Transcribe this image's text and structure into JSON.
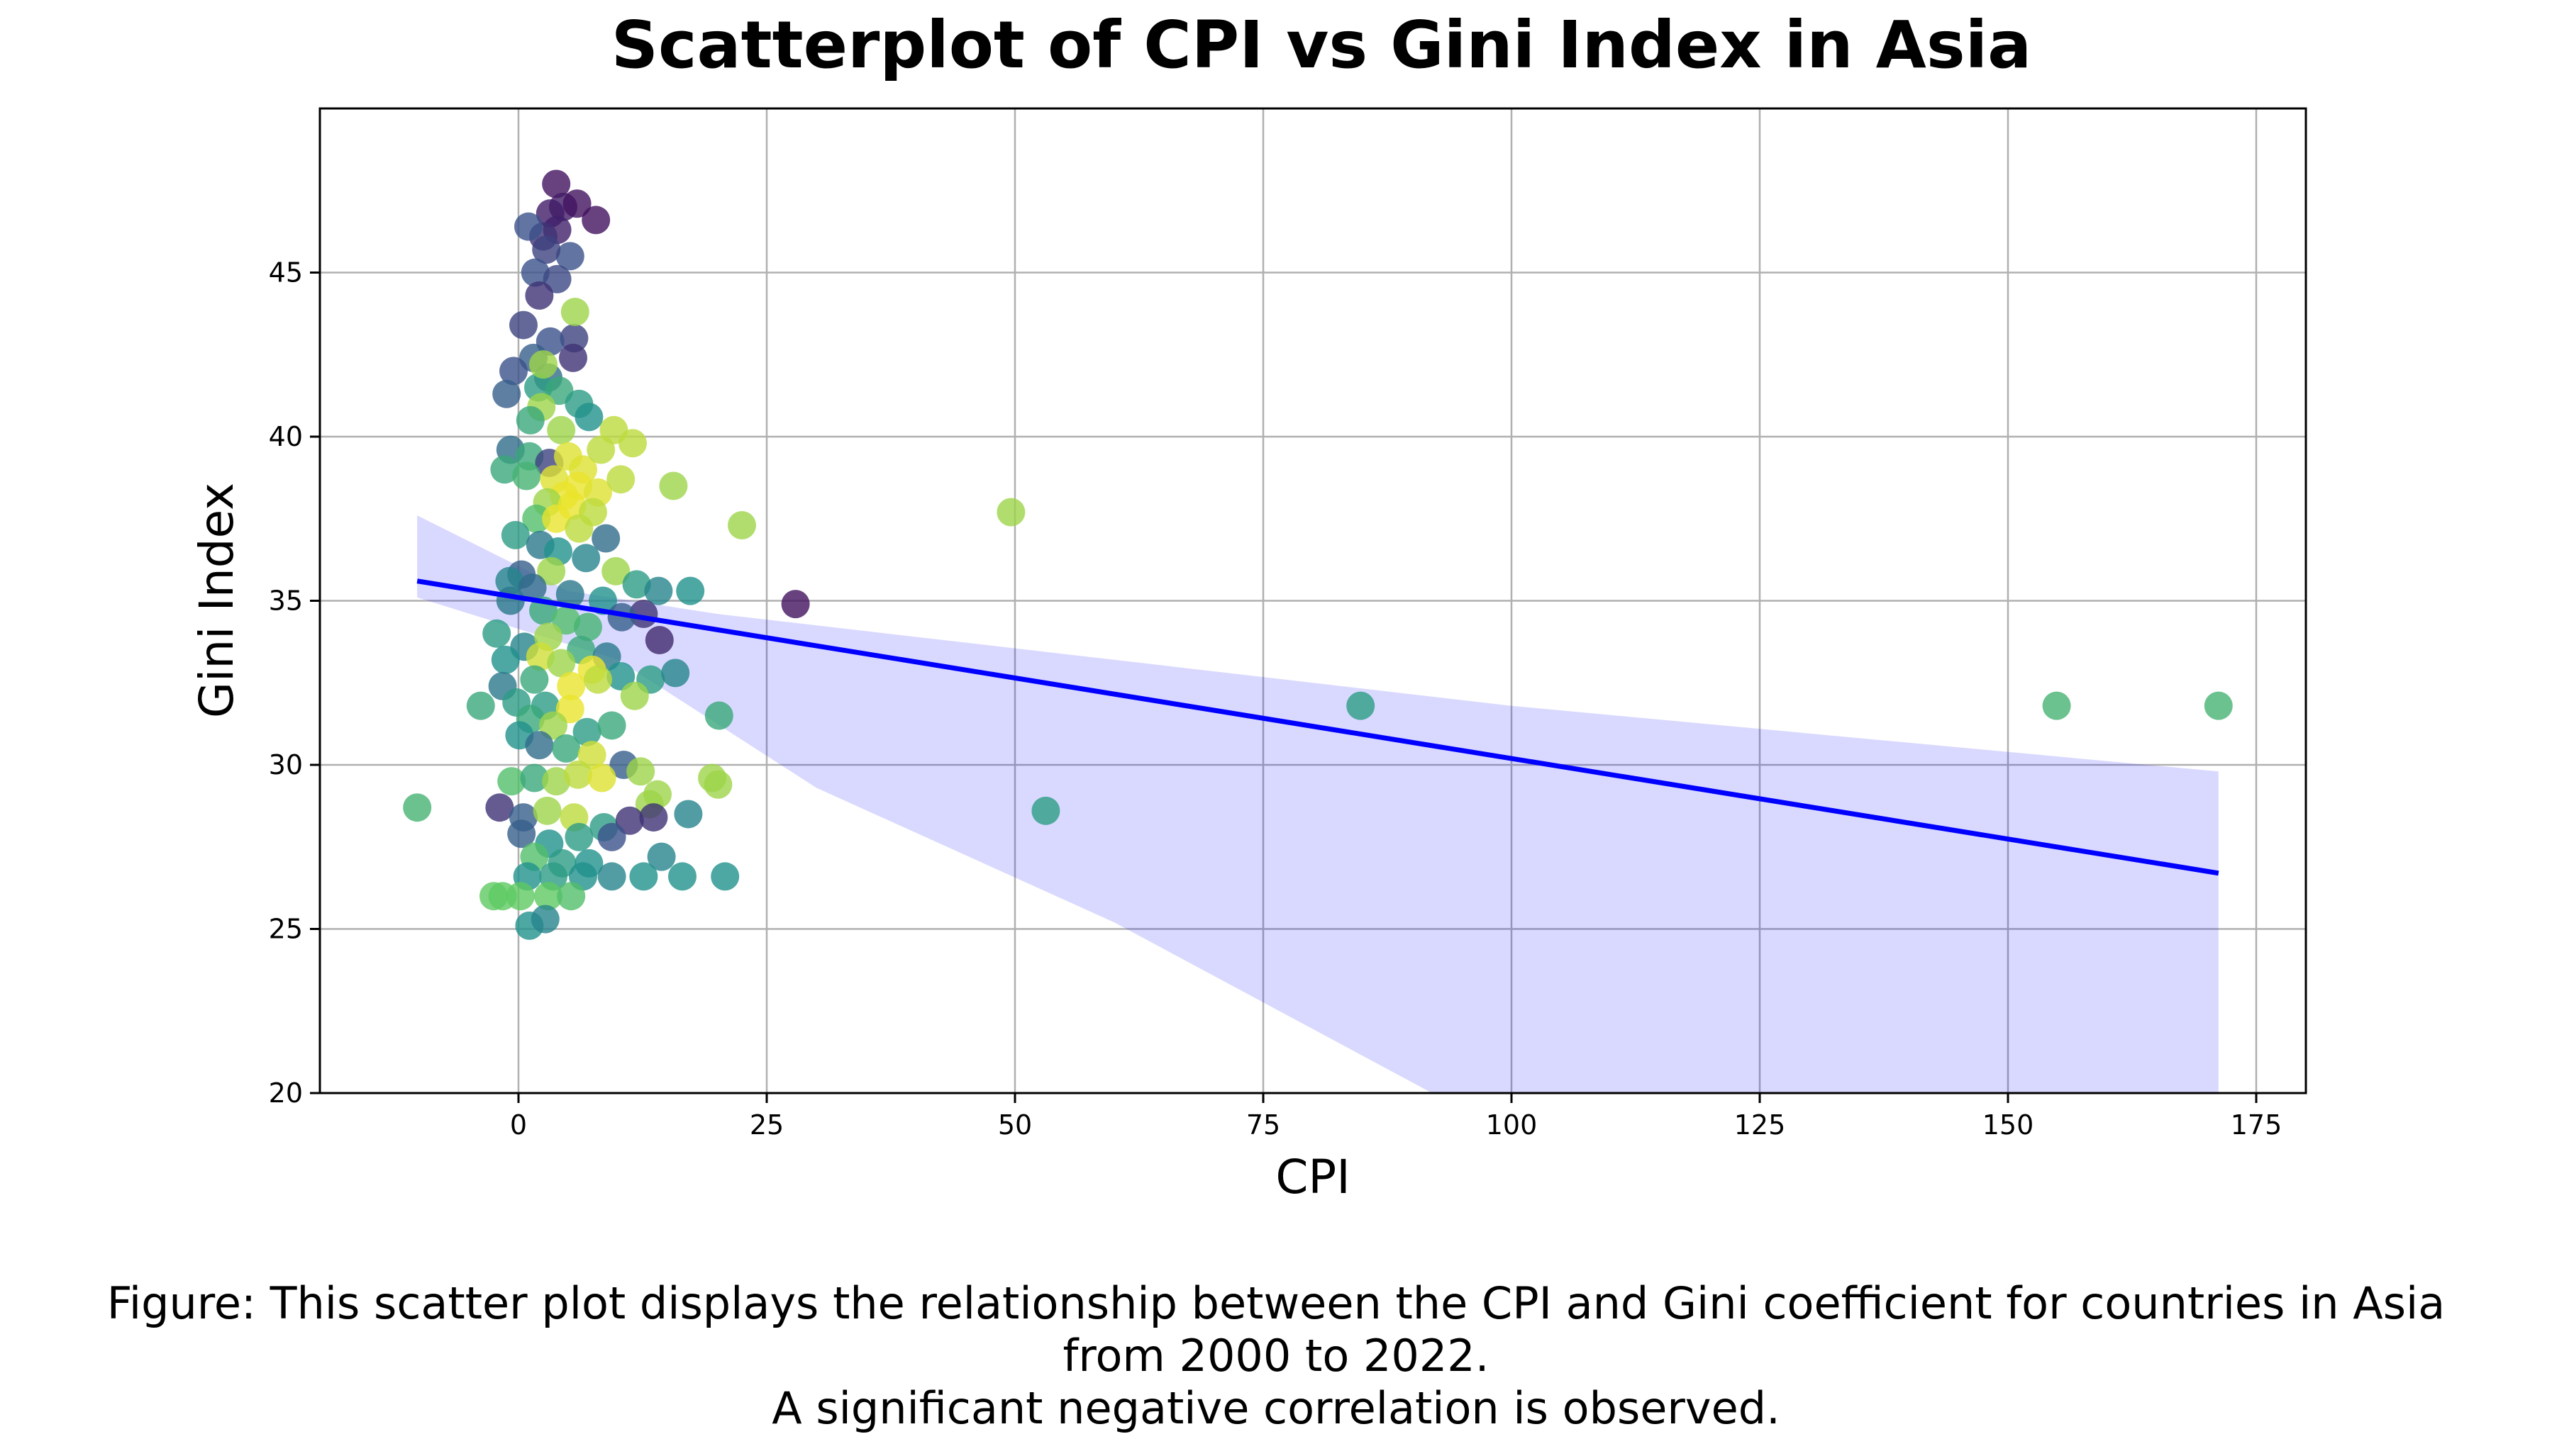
{
  "chart_data": {
    "type": "scatter",
    "title": "Scatterplot of CPI vs Gini Index in Asia",
    "xlabel": "CPI",
    "ylabel": "Gini Index",
    "xlim": [
      -20,
      180
    ],
    "ylim": [
      20,
      50
    ],
    "xticks": [
      0,
      25,
      50,
      75,
      100,
      125,
      150,
      175
    ],
    "yticks": [
      20,
      25,
      30,
      35,
      40,
      45
    ],
    "grid": true,
    "point_colormap": "viridis",
    "points": [
      [
        3.8,
        47.7,
        0.05
      ],
      [
        4.5,
        47.0,
        0.08
      ],
      [
        5.9,
        47.1,
        0.05
      ],
      [
        3.2,
        46.8,
        0.08
      ],
      [
        7.8,
        46.6,
        0.05
      ],
      [
        3.9,
        46.3,
        0.1
      ],
      [
        2.5,
        46.1,
        0.15
      ],
      [
        1.0,
        46.4,
        0.25
      ],
      [
        5.2,
        45.5,
        0.25
      ],
      [
        2.8,
        45.7,
        0.2
      ],
      [
        1.7,
        45.0,
        0.25
      ],
      [
        3.9,
        44.8,
        0.22
      ],
      [
        2.1,
        44.3,
        0.15
      ],
      [
        0.5,
        43.4,
        0.2
      ],
      [
        5.6,
        43.0,
        0.2
      ],
      [
        3.2,
        42.9,
        0.25
      ],
      [
        1.5,
        42.4,
        0.3
      ],
      [
        5.5,
        42.4,
        0.15
      ],
      [
        -0.5,
        42.0,
        0.25
      ],
      [
        3.0,
        41.8,
        0.35
      ],
      [
        2.0,
        41.5,
        0.55
      ],
      [
        4.1,
        41.4,
        0.6
      ],
      [
        -1.2,
        41.3,
        0.3
      ],
      [
        6.1,
        41.0,
        0.55
      ],
      [
        2.3,
        40.9,
        0.85
      ],
      [
        7.1,
        40.6,
        0.5
      ],
      [
        1.2,
        40.5,
        0.6
      ],
      [
        4.3,
        40.2,
        0.85
      ],
      [
        5.7,
        43.8,
        0.85
      ],
      [
        2.5,
        42.2,
        0.85
      ],
      [
        9.6,
        40.2,
        0.9
      ],
      [
        11.5,
        39.8,
        0.9
      ],
      [
        -0.8,
        39.6,
        0.35
      ],
      [
        1.1,
        39.4,
        0.6
      ],
      [
        3.1,
        39.2,
        0.2
      ],
      [
        6.5,
        39.0,
        0.95
      ],
      [
        8.3,
        39.6,
        0.9
      ],
      [
        5.0,
        39.4,
        0.95
      ],
      [
        -1.4,
        39.0,
        0.6
      ],
      [
        0.8,
        38.8,
        0.65
      ],
      [
        3.6,
        38.7,
        0.95
      ],
      [
        6.0,
        38.5,
        0.97
      ],
      [
        8.0,
        38.3,
        0.95
      ],
      [
        10.3,
        38.7,
        0.9
      ],
      [
        4.6,
        38.2,
        0.97
      ],
      [
        2.9,
        38.0,
        0.85
      ],
      [
        5.4,
        37.9,
        0.97
      ],
      [
        7.5,
        37.7,
        0.9
      ],
      [
        1.8,
        37.5,
        0.7
      ],
      [
        3.8,
        37.5,
        0.97
      ],
      [
        6.1,
        37.2,
        0.9
      ],
      [
        15.6,
        38.5,
        0.85
      ],
      [
        22.5,
        37.3,
        0.85
      ],
      [
        49.6,
        37.7,
        0.85
      ],
      [
        -0.3,
        37.0,
        0.55
      ],
      [
        2.2,
        36.7,
        0.4
      ],
      [
        8.8,
        36.9,
        0.35
      ],
      [
        4.0,
        36.5,
        0.5
      ],
      [
        6.8,
        36.3,
        0.45
      ],
      [
        9.8,
        35.9,
        0.85
      ],
      [
        0.3,
        35.8,
        0.3
      ],
      [
        3.3,
        35.9,
        0.85
      ],
      [
        -0.9,
        35.6,
        0.45
      ],
      [
        11.9,
        35.5,
        0.55
      ],
      [
        14.1,
        35.3,
        0.45
      ],
      [
        17.3,
        35.3,
        0.5
      ],
      [
        1.4,
        35.4,
        0.35
      ],
      [
        5.2,
        35.2,
        0.4
      ],
      [
        8.5,
        35.0,
        0.5
      ],
      [
        12.6,
        34.6,
        0.15
      ],
      [
        27.9,
        34.9,
        0.05
      ],
      [
        -0.8,
        35.0,
        0.4
      ],
      [
        2.5,
        34.7,
        0.6
      ],
      [
        4.8,
        34.4,
        0.7
      ],
      [
        7.0,
        34.2,
        0.65
      ],
      [
        10.4,
        34.5,
        0.3
      ],
      [
        14.2,
        33.8,
        0.12
      ],
      [
        -2.2,
        34.0,
        0.55
      ],
      [
        0.6,
        33.6,
        0.45
      ],
      [
        3.0,
        33.9,
        0.85
      ],
      [
        6.3,
        33.5,
        0.6
      ],
      [
        8.9,
        33.3,
        0.4
      ],
      [
        -1.3,
        33.2,
        0.5
      ],
      [
        2.2,
        33.3,
        0.93
      ],
      [
        4.3,
        33.1,
        0.85
      ],
      [
        7.4,
        32.9,
        0.97
      ],
      [
        10.3,
        32.7,
        0.5
      ],
      [
        13.3,
        32.6,
        0.55
      ],
      [
        15.8,
        32.8,
        0.45
      ],
      [
        -1.6,
        32.4,
        0.4
      ],
      [
        1.6,
        32.6,
        0.6
      ],
      [
        5.3,
        32.4,
        0.97
      ],
      [
        8.0,
        32.6,
        0.9
      ],
      [
        -0.2,
        31.9,
        0.55
      ],
      [
        2.7,
        31.8,
        0.55
      ],
      [
        5.2,
        31.7,
        0.97
      ],
      [
        11.7,
        32.1,
        0.85
      ],
      [
        -3.8,
        31.8,
        0.6
      ],
      [
        20.2,
        31.5,
        0.6
      ],
      [
        84.8,
        31.8,
        0.55
      ],
      [
        154.9,
        31.8,
        0.65
      ],
      [
        171.2,
        31.8,
        0.65
      ],
      [
        1.2,
        31.4,
        0.6
      ],
      [
        3.5,
        31.2,
        0.85
      ],
      [
        6.9,
        31.0,
        0.55
      ],
      [
        9.4,
        31.2,
        0.6
      ],
      [
        0.1,
        30.9,
        0.5
      ],
      [
        2.1,
        30.6,
        0.35
      ],
      [
        4.8,
        30.5,
        0.6
      ],
      [
        7.4,
        30.3,
        0.93
      ],
      [
        10.6,
        30.0,
        0.3
      ],
      [
        12.3,
        29.8,
        0.85
      ],
      [
        -0.7,
        29.5,
        0.7
      ],
      [
        1.6,
        29.6,
        0.6
      ],
      [
        3.8,
        29.5,
        0.85
      ],
      [
        6.0,
        29.7,
        0.9
      ],
      [
        8.4,
        29.6,
        0.95
      ],
      [
        19.5,
        29.6,
        0.85
      ],
      [
        20.1,
        29.4,
        0.85
      ],
      [
        14.0,
        29.1,
        0.85
      ],
      [
        13.2,
        28.8,
        0.85
      ],
      [
        -1.9,
        28.7,
        0.15
      ],
      [
        0.5,
        28.4,
        0.3
      ],
      [
        2.9,
        28.6,
        0.85
      ],
      [
        5.6,
        28.4,
        0.9
      ],
      [
        8.6,
        28.1,
        0.55
      ],
      [
        11.2,
        28.3,
        0.15
      ],
      [
        13.6,
        28.4,
        0.15
      ],
      [
        17.1,
        28.5,
        0.45
      ],
      [
        -10.2,
        28.7,
        0.65
      ],
      [
        53.1,
        28.6,
        0.55
      ],
      [
        0.3,
        27.9,
        0.3
      ],
      [
        3.1,
        27.6,
        0.5
      ],
      [
        6.1,
        27.8,
        0.55
      ],
      [
        9.4,
        27.8,
        0.25
      ],
      [
        1.6,
        27.2,
        0.7
      ],
      [
        4.4,
        27.0,
        0.55
      ],
      [
        7.1,
        27.0,
        0.5
      ],
      [
        14.4,
        27.2,
        0.45
      ],
      [
        0.9,
        26.6,
        0.5
      ],
      [
        3.5,
        26.6,
        0.55
      ],
      [
        6.5,
        26.6,
        0.5
      ],
      [
        9.4,
        26.6,
        0.45
      ],
      [
        12.6,
        26.6,
        0.5
      ],
      [
        16.5,
        26.6,
        0.5
      ],
      [
        20.8,
        26.6,
        0.5
      ],
      [
        -2.5,
        26.0,
        0.75
      ],
      [
        -1.6,
        26.0,
        0.75
      ],
      [
        0.2,
        26.0,
        0.75
      ],
      [
        3.0,
        26.0,
        0.75
      ],
      [
        5.3,
        26.0,
        0.7
      ],
      [
        1.1,
        25.1,
        0.5
      ],
      [
        2.7,
        25.3,
        0.45
      ]
    ],
    "regression": {
      "color": "#0000ff",
      "line": [
        [
          -10.2,
          35.6
        ],
        [
          171.2,
          26.7
        ]
      ],
      "ci_upper": [
        [
          -10.2,
          37.6
        ],
        [
          5.0,
          35.3
        ],
        [
          20.0,
          34.6
        ],
        [
          60.0,
          33.2
        ],
        [
          100.0,
          31.8
        ],
        [
          171.2,
          29.8
        ]
      ],
      "ci_lower": [
        [
          171.2,
          20.0
        ],
        [
          92.0,
          20.0
        ],
        [
          60.0,
          25.2
        ],
        [
          30.0,
          29.3
        ],
        [
          10.0,
          33.2
        ],
        [
          -10.2,
          35.1
        ]
      ]
    }
  },
  "caption": {
    "line1": "Figure: This scatter plot displays the relationship between the CPI and Gini coefficient for countries in Asia",
    "line2": "from 2000 to 2022.",
    "line3": "A significant negative correlation is observed."
  }
}
